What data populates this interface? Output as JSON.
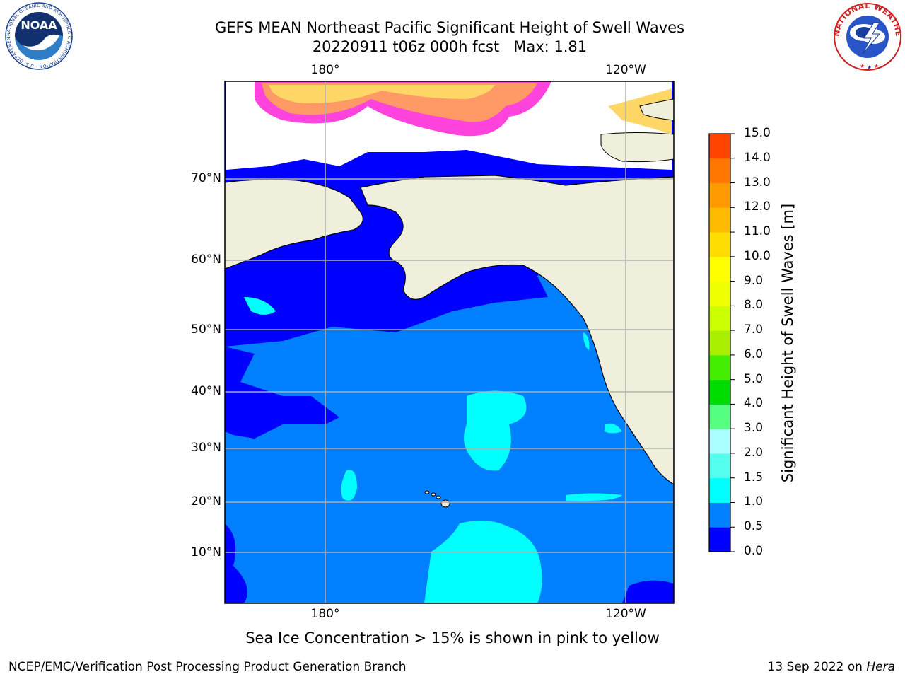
{
  "header": {
    "title_line1": "GEFS MEAN Northeast Pacific Significant Height of Swell Waves",
    "title_line2": "20220911 t06z 000h fcst   Max: 1.81"
  },
  "logos": {
    "noaa_text": "NOAA",
    "noaa_ring_text": "NATIONAL OCEANIC AND ATMOSPHERIC ADMINISTRATION · U.S. DEPARTMENT OF COMMERCE",
    "nws_ring_text": "NATIONAL WEATHER SERVICE"
  },
  "map": {
    "lon_labels_top": [
      "180°",
      "120°W"
    ],
    "lon_labels_bottom": [
      "180°",
      "120°W"
    ],
    "lat_labels": [
      "70°N",
      "60°N",
      "50°N",
      "40°N",
      "30°N",
      "20°N",
      "10°N"
    ],
    "colors": {
      "land": "#efefdc",
      "coast": "#000000",
      "grid": "#b0b0b0",
      "ice_low": "#ff44dd",
      "ice_mid": "#ff9966",
      "ice_high": "#ffd766",
      "no_data": "#ffffff"
    }
  },
  "colorbar": {
    "label": "Significant Height of Swell Waves [m]",
    "ticks": [
      "15.0",
      "14.0",
      "13.0",
      "12.0",
      "11.0",
      "10.0",
      "9.0",
      "8.0",
      "7.0",
      "6.0",
      "5.0",
      "4.0",
      "3.0",
      "2.0",
      "1.5",
      "1.0",
      "0.5",
      "0.0"
    ],
    "colors_bottom_to_top": [
      "#0000ff",
      "#0080ff",
      "#00ffff",
      "#55ffee",
      "#aaffff",
      "#55ff80",
      "#00dd00",
      "#44ee00",
      "#aaee00",
      "#ccff00",
      "#eeff00",
      "#ffff00",
      "#ffdd00",
      "#ffbb00",
      "#ff9900",
      "#ff7700",
      "#ff4400",
      "#ff2200",
      "#ff0000"
    ]
  },
  "caption": "Sea Ice Concentration > 15% is shown in pink to yellow",
  "footer": {
    "left": "NCEP/EMC/Verification Post Processing Product Generation Branch",
    "right_date": "13 Sep 2022 on ",
    "right_machine": "Hera"
  }
}
